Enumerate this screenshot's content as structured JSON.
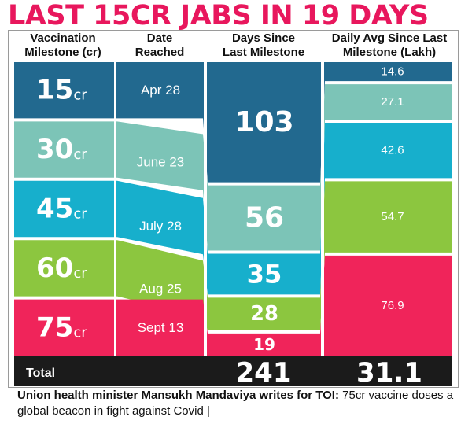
{
  "title": "LAST 15CR JABS IN 19 DAYS",
  "headers": {
    "milestone": [
      "Vaccination",
      "Milestone (cr)"
    ],
    "date": [
      "Date",
      "Reached"
    ],
    "days": [
      "Days Since",
      "Last Milestone"
    ],
    "avg": [
      "Daily Avg Since Last",
      "Milestone (Lakh)"
    ]
  },
  "colors": [
    "#22698f",
    "#7cc4b7",
    "#17afcc",
    "#8cc63f",
    "#f0245a"
  ],
  "chart_data": {
    "type": "table",
    "columns": [
      "Vaccination Milestone (cr)",
      "Date Reached",
      "Days Since Last Milestone",
      "Daily Avg Since Last Milestone (Lakh)"
    ],
    "rows": [
      {
        "milestone": "15",
        "unit": "cr",
        "date": "Apr 28",
        "days": 103,
        "avg": 14.6
      },
      {
        "milestone": "30",
        "unit": "cr",
        "date": "June 23",
        "days": 56,
        "avg": 27.1
      },
      {
        "milestone": "45",
        "unit": "cr",
        "date": "July 28",
        "days": 35,
        "avg": 42.6
      },
      {
        "milestone": "60",
        "unit": "cr",
        "date": "Aug 25",
        "days": 28,
        "avg": 54.7
      },
      {
        "milestone": "75",
        "unit": "cr",
        "date": "Sept 13",
        "days": 19,
        "avg": 76.9
      }
    ],
    "total": {
      "label": "Total",
      "days": 241,
      "avg": 31.1
    }
  },
  "caption": {
    "bold": "Union health minister Mansukh Mandaviya writes for TOI:",
    "rest": " 75cr vaccine doses a global beacon in fight against Covid |"
  }
}
